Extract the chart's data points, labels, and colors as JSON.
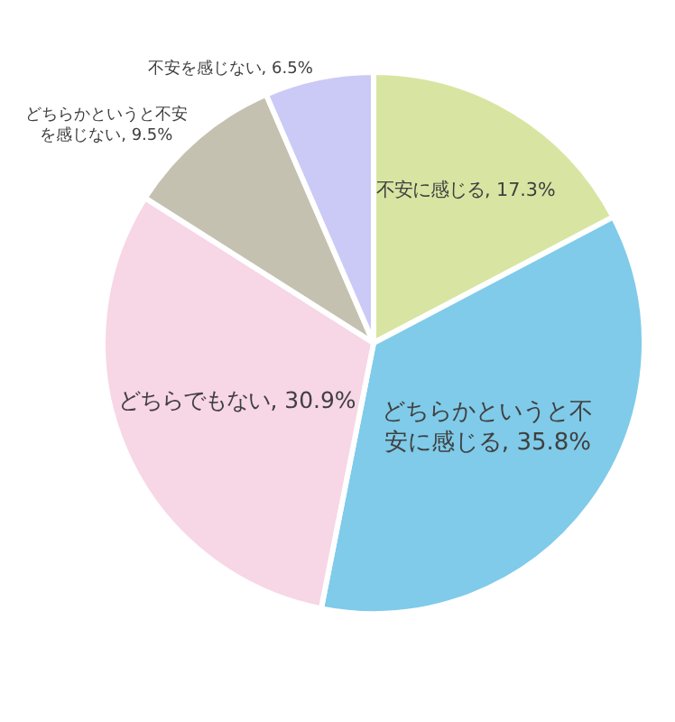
{
  "chart_data": {
    "type": "pie",
    "categories": [
      "不安に感じる",
      "どちらかというと不安に感じる",
      "どちらでもない",
      "どちらかというと不安を感じない",
      "不安を感じない"
    ],
    "values": [
      17.3,
      35.8,
      30.9,
      9.5,
      6.5
    ],
    "colors": [
      "#d8e5a2",
      "#7fcbe9",
      "#f7d6e6",
      "#c5c1b1",
      "#cbcaf6"
    ],
    "value_labels": [
      "17.3%",
      "35.8%",
      "30.9%",
      "9.5%",
      "6.5%"
    ],
    "legend": false
  }
}
